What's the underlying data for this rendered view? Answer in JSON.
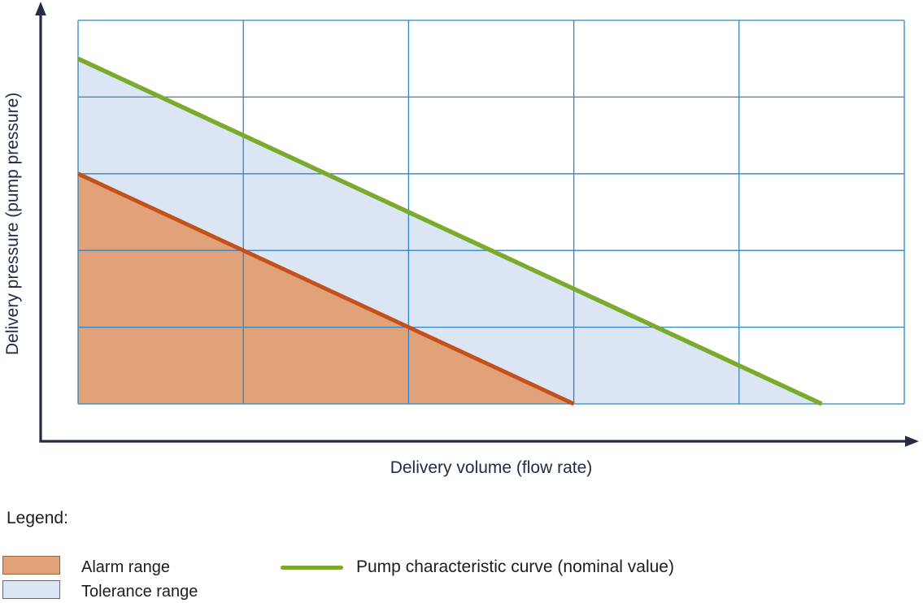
{
  "figure": {
    "xlabel": "Delivery volume (flow rate)",
    "ylabel": "Delivery pressure (pump pressure)"
  },
  "legend": {
    "title": "Legend:",
    "items": [
      {
        "label": "Alarm range"
      },
      {
        "label": "Tolerance range"
      },
      {
        "label": "Pump characteristic curve (nominal value)"
      }
    ]
  },
  "colors": {
    "alarm_fill": "#e1a179",
    "alarm_line": "#c4511c",
    "tolerance_fill": "#dbe5f4",
    "nominal_line": "#7aab2c",
    "grid_line": "#2e86c4",
    "axis": "#252c44",
    "axis_label_text": "#222c49",
    "legend_text": "#1d1d1b",
    "alarm_swatch_border": "#9c6434",
    "tolerance_swatch_border": "#686868"
  },
  "chart_data": {
    "type": "area",
    "title": "",
    "xlabel": "Delivery volume (flow rate)",
    "ylabel": "Delivery pressure (pump pressure)",
    "xlim": [
      0,
      5
    ],
    "ylim": [
      0,
      5
    ],
    "grid": true,
    "x_ticks": [
      0,
      1,
      2,
      3,
      4,
      5
    ],
    "y_ticks": [
      0,
      1,
      2,
      3,
      4,
      5
    ],
    "tick_labels_visible": false,
    "axes_quantitative": false,
    "legend_position": "bottom",
    "series": [
      {
        "name": "Pump characteristic curve (nominal value)",
        "type": "line",
        "points": [
          [
            0,
            4.5
          ],
          [
            4.5,
            0
          ]
        ],
        "color": "#7aab2c",
        "width": 5.5
      },
      {
        "name": "Alarm range boundary",
        "type": "line",
        "points": [
          [
            0,
            3
          ],
          [
            3,
            0
          ]
        ],
        "color": "#c4511c",
        "width": 5
      }
    ],
    "regions": [
      {
        "name": "Tolerance range",
        "points": [
          [
            0,
            4.5
          ],
          [
            4.5,
            0
          ],
          [
            0,
            0
          ]
        ],
        "color": "#dbe5f4"
      },
      {
        "name": "Alarm range",
        "points": [
          [
            0,
            3
          ],
          [
            3,
            0
          ],
          [
            0,
            0
          ]
        ],
        "color": "#e1a179"
      }
    ]
  }
}
